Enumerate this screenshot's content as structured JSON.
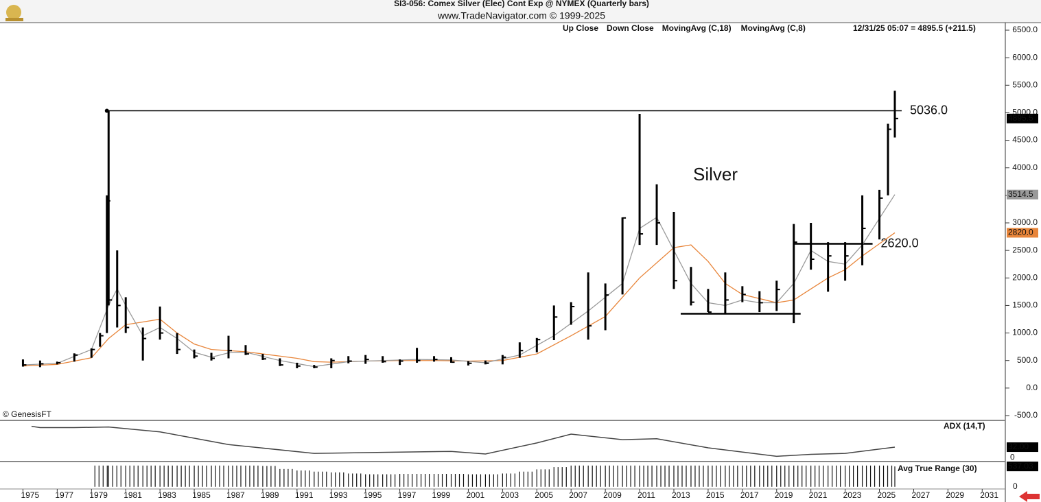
{
  "chart_data": {
    "type": "ohlc",
    "title": "SI3-056:  Comex Silver (Elec) Cont Exp @ NYMEX  (Quarterly bars)",
    "subtitle": "www.TradeNavigator.com © 1999-2025",
    "annotation": "Silver",
    "credit": "© GenesisFT",
    "status": "12/31/25 05:07 = 4895.5 (+211.5)",
    "legend_items": [
      {
        "name": "Up Close",
        "color": "#000000"
      },
      {
        "name": "Down Close",
        "color": "#000000"
      }
    ],
    "x": [
      1975,
      1976,
      1977,
      1978,
      1979,
      1979.5,
      1979.9,
      1980.0,
      1980.5,
      1981,
      1982,
      1983,
      1984,
      1985,
      1986,
      1987,
      1988,
      1989,
      1990,
      1991,
      1992,
      1993,
      1994,
      1995,
      1996,
      1997,
      1998,
      1999,
      2000,
      2001,
      2002,
      2003,
      2004,
      2005,
      2006,
      2007,
      2008,
      2009,
      2010,
      2011,
      2012,
      2013,
      2014,
      2015,
      2016,
      2017,
      2018,
      2019,
      2020,
      2021,
      2022,
      2023,
      2024,
      2025,
      2025.5,
      2025.9
    ],
    "high": [
      520,
      500,
      480,
      630,
      720,
      1000,
      3500,
      5036,
      2500,
      1650,
      1100,
      1480,
      1000,
      700,
      640,
      950,
      780,
      620,
      540,
      460,
      420,
      540,
      580,
      600,
      580,
      520,
      730,
      580,
      560,
      490,
      500,
      600,
      830,
      910,
      1500,
      1560,
      2100,
      1900,
      3100,
      4980,
      3700,
      3200,
      2200,
      1800,
      2100,
      1850,
      1760,
      1950,
      2980,
      3000,
      2650,
      2650,
      3500,
      3600,
      4800,
      5400
    ],
    "low": [
      390,
      380,
      430,
      480,
      550,
      750,
      1000,
      1500,
      1100,
      1000,
      500,
      880,
      620,
      540,
      500,
      540,
      600,
      510,
      400,
      360,
      360,
      360,
      450,
      440,
      460,
      420,
      460,
      480,
      460,
      410,
      430,
      430,
      550,
      650,
      870,
      1150,
      880,
      1050,
      1700,
      2600,
      2600,
      1800,
      1500,
      1380,
      1360,
      1560,
      1380,
      1400,
      1180,
      2150,
      1750,
      1950,
      2230,
      2700,
      3500,
      4550
    ],
    "close": [
      420,
      440,
      460,
      600,
      700,
      950,
      3400,
      1600,
      1500,
      1100,
      900,
      1000,
      700,
      580,
      540,
      680,
      620,
      530,
      420,
      400,
      380,
      500,
      490,
      520,
      480,
      490,
      500,
      520,
      470,
      450,
      450,
      560,
      680,
      880,
      1290,
      1480,
      1130,
      1690,
      3090,
      2800,
      3000,
      1950,
      1560,
      1380,
      1600,
      1700,
      1550,
      1790,
      2650,
      2340,
      2400,
      2400,
      2900,
      3450,
      4700,
      4895.5
    ],
    "last": {
      "value": 4895.5,
      "label": "4895.5"
    },
    "series": [
      {
        "name": "MovingAvg (C,18)",
        "color": "#e8853a",
        "x": [
          1975,
          1977,
          1979,
          1980,
          1981,
          1982,
          1983,
          1984,
          1985,
          1986,
          1987,
          1988,
          1989,
          1990,
          1991,
          1992,
          1993,
          1995,
          1997,
          1999,
          2001,
          2003,
          2005,
          2007,
          2009,
          2011,
          2013,
          2014,
          2015,
          2016,
          2017,
          2019,
          2020,
          2021,
          2022,
          2023,
          2024,
          2025.9
        ],
        "values": [
          400,
          430,
          550,
          900,
          1150,
          1200,
          1250,
          1000,
          800,
          700,
          680,
          660,
          620,
          580,
          540,
          480,
          470,
          490,
          500,
          500,
          490,
          500,
          620,
          950,
          1300,
          2000,
          2550,
          2600,
          2300,
          1900,
          1700,
          1550,
          1600,
          1800,
          2000,
          2150,
          2400,
          2820
        ],
        "tag": {
          "value": 2820,
          "label": "2820.0"
        }
      },
      {
        "name": "MovingAvg (C,8)",
        "color": "#9a9a9a",
        "x": [
          1975,
          1977,
          1979,
          1980,
          1980.5,
          1981,
          1982,
          1983,
          1984,
          1985,
          1986,
          1987,
          1988,
          1990,
          1992,
          1994,
          1996,
          1998,
          2000,
          2002,
          2004,
          2006,
          2008,
          2010,
          2011,
          2012,
          2013,
          2014,
          2015,
          2016,
          2017,
          2018,
          2019,
          2020,
          2021,
          2022,
          2023,
          2024,
          2025.9
        ],
        "values": [
          420,
          450,
          700,
          1500,
          1800,
          1500,
          950,
          1100,
          900,
          650,
          560,
          640,
          650,
          500,
          390,
          480,
          500,
          520,
          510,
          460,
          600,
          950,
          1400,
          1900,
          2900,
          3100,
          2500,
          1900,
          1550,
          1500,
          1600,
          1550,
          1550,
          1900,
          2500,
          2300,
          2250,
          2600,
          3514.5
        ],
        "tag": {
          "value": 3514.5,
          "label": "3514.5"
        }
      }
    ],
    "levels": [
      {
        "value": 5036,
        "x": [
          1979.9,
          2026.3
        ],
        "label": "5036.0"
      },
      {
        "value": 2620,
        "x": [
          2020,
          2024.6
        ],
        "label": "2620.0"
      },
      {
        "value": 1350,
        "x": [
          2013.4,
          2020.4
        ]
      }
    ],
    "xlim": [
      1973.66,
      2032.35
    ],
    "ylim": [
      -500,
      6500
    ],
    "xticks": [
      1975,
      1977,
      1979,
      1981,
      1983,
      1985,
      1987,
      1989,
      1991,
      1993,
      1995,
      1997,
      1999,
      2001,
      2003,
      2005,
      2007,
      2009,
      2011,
      2013,
      2015,
      2017,
      2019,
      2021,
      2023,
      2025,
      2027,
      2029,
      2031
    ],
    "yticks": [
      {
        "value": 6500,
        "label": "6500.0"
      },
      {
        "value": 6000,
        "label": "6000.0"
      },
      {
        "value": 5500,
        "label": "5500.0"
      },
      {
        "value": 5000,
        "label": "5000.0"
      },
      {
        "value": 4500,
        "label": "4500.0"
      },
      {
        "value": 4000,
        "label": "4000.0"
      },
      {
        "value": 3500,
        "label": "3500.0"
      },
      {
        "value": 3000,
        "label": "3000.0"
      },
      {
        "value": 2500,
        "label": "2500.0"
      },
      {
        "value": 2000,
        "label": "2000.0"
      },
      {
        "value": 1500,
        "label": "1500.0"
      },
      {
        "value": 1000,
        "label": "1000.0"
      },
      {
        "value": 500,
        "label": "500.0"
      },
      {
        "value": 0,
        "label": "0.0"
      },
      {
        "value": -500,
        "label": "-500.0"
      }
    ],
    "adx": {
      "title": "ADX (14,T)",
      "color": "#444444",
      "x": [
        1975.5,
        1976,
        1978,
        1980,
        1983,
        1987,
        1992,
        1996,
        2000,
        2002,
        2005,
        2007,
        2010,
        2012,
        2015,
        2019,
        2021,
        2023,
        2025.9
      ],
      "values": [
        96,
        92,
        92,
        94,
        79,
        40,
        13,
        16,
        19,
        11,
        45,
        72,
        55,
        58,
        30,
        4,
        10,
        13,
        32
      ],
      "ylim": [
        -10,
        110
      ],
      "yticks": [
        0
      ],
      "last": {
        "value": 32,
        "label": "32.00"
      }
    },
    "atr": {
      "title": "Avg True Range (30)",
      "color": "#111111",
      "x": [
        1979.2,
        1980,
        1981,
        1982,
        1983,
        1984,
        1985,
        1986,
        1987,
        1988,
        1989,
        1990,
        1991,
        1992,
        1993,
        1994,
        1995,
        1996,
        1997,
        1998,
        1999,
        2000,
        2001,
        2002,
        2003,
        2004,
        2005,
        2006,
        2007,
        2008,
        2009,
        2010,
        2011,
        2012,
        2013,
        2014,
        2015,
        2016,
        2017,
        2018,
        2019,
        2020,
        2021,
        2022,
        2023,
        2024,
        2025,
        2025.9
      ],
      "values": [
        560,
        560,
        560,
        560,
        560,
        560,
        560,
        560,
        560,
        560,
        550,
        470,
        430,
        400,
        380,
        350,
        330,
        330,
        340,
        340,
        340,
        340,
        330,
        330,
        350,
        400,
        460,
        520,
        560,
        560,
        560,
        560,
        560,
        560,
        560,
        560,
        560,
        560,
        560,
        560,
        560,
        560,
        560,
        560,
        560,
        560,
        560,
        537
      ],
      "ylim": [
        -40,
        630
      ],
      "yticks": [
        0
      ],
      "last": {
        "value": 537,
        "label": "537.03"
      }
    }
  }
}
